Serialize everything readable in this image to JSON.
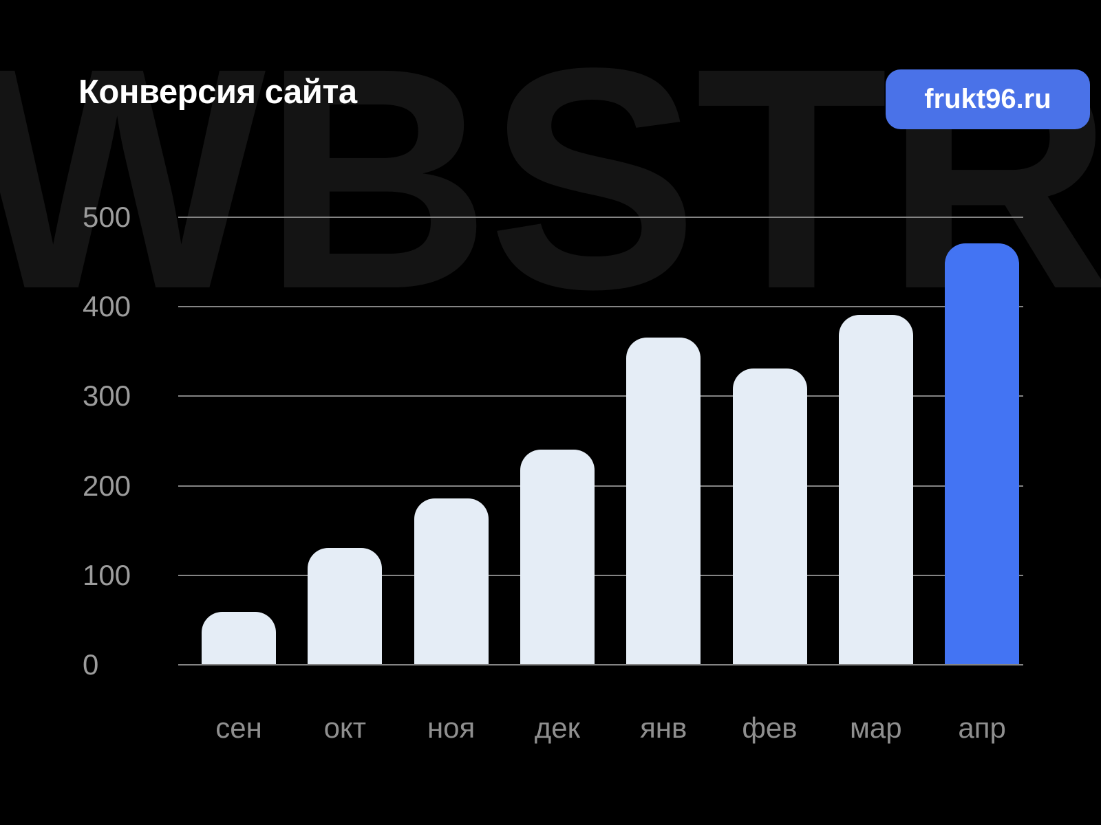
{
  "page": {
    "title": "Конверсия сайта",
    "badge_label": "frukt96.ru",
    "watermark": "WBSTR"
  },
  "colors": {
    "background": "#000000",
    "watermark_text": "#141414",
    "title_text": "#ffffff",
    "badge_bg": "#4a72e8",
    "badge_text": "#ffffff",
    "bar_default": "#e5edf6",
    "bar_highlight": "#4374f3",
    "gridline": "#848484",
    "y_label_text": "#9c9c9c",
    "x_label_text": "#8f8f8f"
  },
  "chart_data": {
    "type": "bar",
    "title": "Конверсия сайта",
    "categories": [
      "сен",
      "окт",
      "ноя",
      "дек",
      "янв",
      "фев",
      "мар",
      "апр"
    ],
    "values": [
      58,
      130,
      185,
      240,
      365,
      330,
      390,
      470
    ],
    "highlight_index": 7,
    "highlight_category": "апр",
    "yticks": [
      0,
      100,
      200,
      300,
      400,
      500
    ],
    "ylim": [
      0,
      500
    ],
    "grid": true,
    "legend": false,
    "xlabel": "",
    "ylabel": ""
  }
}
